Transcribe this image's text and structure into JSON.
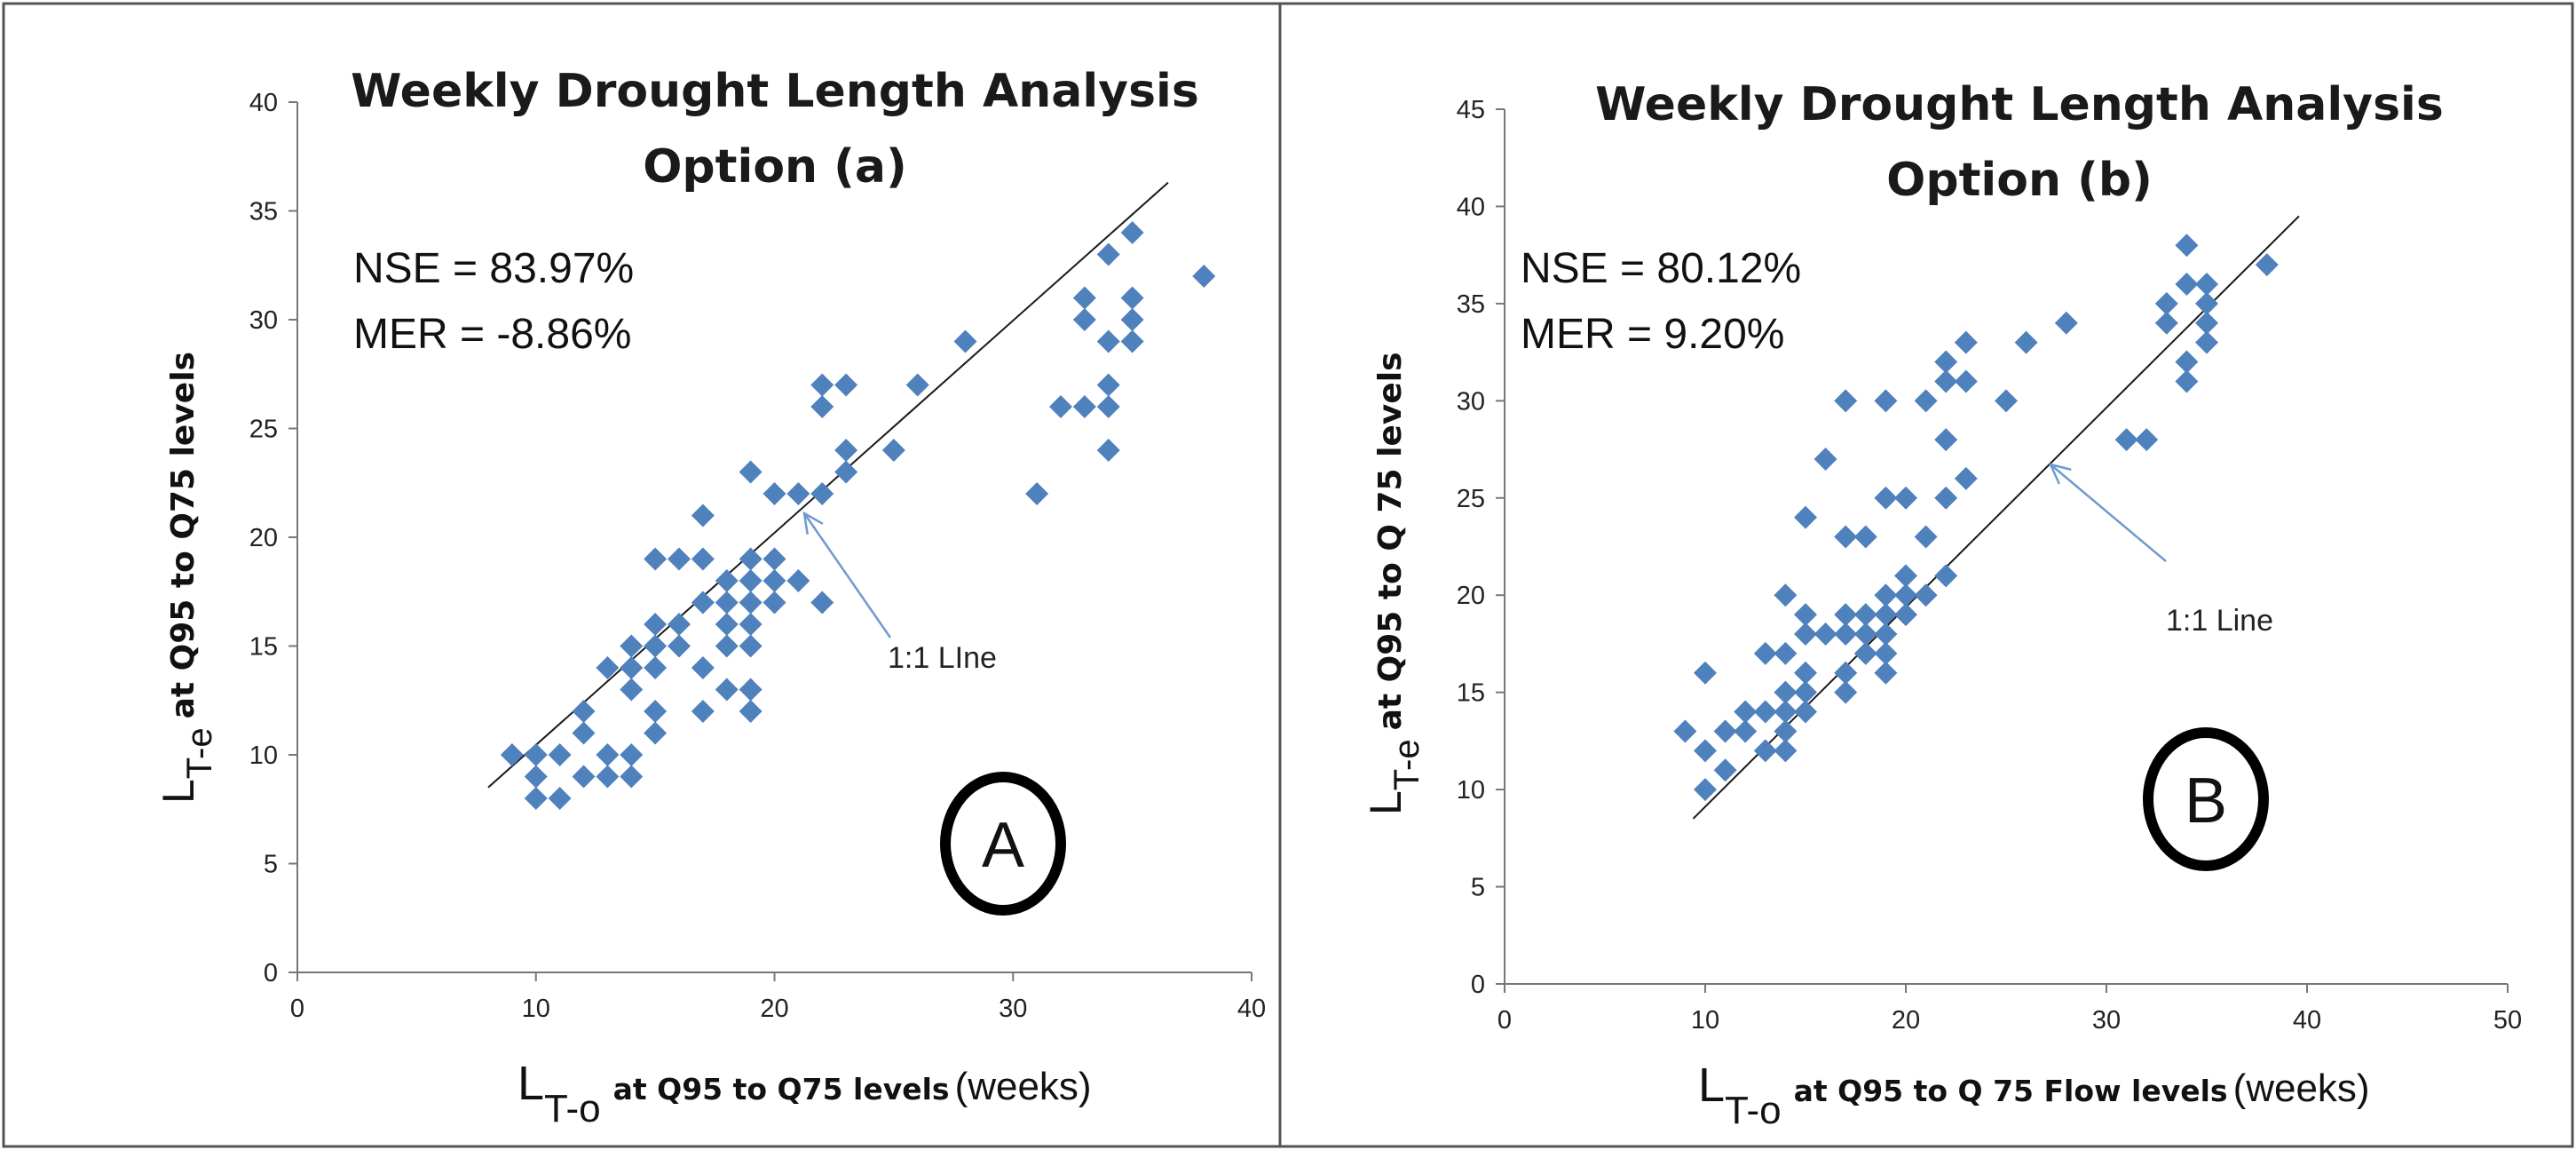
{
  "chart_data": [
    {
      "type": "scatter",
      "panel": "left",
      "title_line1": "Weekly Drought Length Analysis",
      "title_line2": "Option (a)",
      "stats": [
        "NSE = 83.97%",
        "MER = -8.86%"
      ],
      "xlabel_sym": "L",
      "xlabel_sub": "T-o",
      "xlabel_bold": "at Q95 to Q75 levels",
      "xlabel_unit": "(weeks)",
      "ylabel_sym": "L",
      "ylabel_sub": "T-e",
      "ylabel_bold": "at Q95 to Q75 levels",
      "xlim": [
        0,
        40
      ],
      "ylim": [
        0,
        40
      ],
      "xticks": [
        0,
        10,
        20,
        30,
        40
      ],
      "yticks": [
        0,
        5,
        10,
        15,
        20,
        25,
        30,
        35,
        40
      ],
      "annotation": "1:1 LIne",
      "badge": "A",
      "marker_color": "#4f81bd",
      "points": [
        [
          9,
          10
        ],
        [
          10,
          9
        ],
        [
          10,
          10
        ],
        [
          10,
          8
        ],
        [
          11,
          8
        ],
        [
          11,
          10
        ],
        [
          12,
          9
        ],
        [
          12,
          11
        ],
        [
          12,
          12
        ],
        [
          13,
          10
        ],
        [
          13,
          9
        ],
        [
          13,
          14
        ],
        [
          14,
          14
        ],
        [
          14,
          9
        ],
        [
          14,
          10
        ],
        [
          14,
          13
        ],
        [
          14,
          15
        ],
        [
          15,
          19
        ],
        [
          15,
          15
        ],
        [
          15,
          14
        ],
        [
          15,
          16
        ],
        [
          15,
          12
        ],
        [
          15,
          11
        ],
        [
          16,
          19
        ],
        [
          16,
          16
        ],
        [
          16,
          15
        ],
        [
          17,
          19
        ],
        [
          17,
          21
        ],
        [
          17,
          17
        ],
        [
          17,
          14
        ],
        [
          17,
          12
        ],
        [
          18,
          18
        ],
        [
          18,
          17
        ],
        [
          18,
          16
        ],
        [
          18,
          15
        ],
        [
          18,
          13
        ],
        [
          19,
          19
        ],
        [
          19,
          23
        ],
        [
          19,
          18
        ],
        [
          19,
          17
        ],
        [
          19,
          16
        ],
        [
          19,
          15
        ],
        [
          19,
          13
        ],
        [
          19,
          12
        ],
        [
          20,
          22
        ],
        [
          20,
          19
        ],
        [
          20,
          18
        ],
        [
          20,
          17
        ],
        [
          21,
          22
        ],
        [
          21,
          18
        ],
        [
          22,
          27
        ],
        [
          22,
          26
        ],
        [
          22,
          22
        ],
        [
          22,
          17
        ],
        [
          23,
          27
        ],
        [
          23,
          24
        ],
        [
          23,
          23
        ],
        [
          25,
          24
        ],
        [
          26,
          27
        ],
        [
          28,
          29
        ],
        [
          31,
          22
        ],
        [
          32,
          26
        ],
        [
          33,
          31
        ],
        [
          33,
          30
        ],
        [
          33,
          26
        ],
        [
          34,
          33
        ],
        [
          34,
          29
        ],
        [
          34,
          27
        ],
        [
          34,
          26
        ],
        [
          34,
          24
        ],
        [
          35,
          34
        ],
        [
          35,
          31
        ],
        [
          35,
          30
        ],
        [
          35,
          29
        ],
        [
          38,
          32
        ]
      ],
      "line": [
        [
          8,
          8.5
        ],
        [
          36.5,
          36.3
        ]
      ]
    },
    {
      "type": "scatter",
      "panel": "right",
      "title_line1": "Weekly Drought Length Analysis",
      "title_line2": "Option (b)",
      "stats": [
        "NSE = 80.12%",
        "MER =  9.20%"
      ],
      "xlabel_sym": "L",
      "xlabel_sub": "T-o",
      "xlabel_bold": "at Q95 to Q 75 Flow levels",
      "xlabel_unit": "(weeks)",
      "ylabel_sym": "L",
      "ylabel_sub": "T-e",
      "ylabel_bold": "at Q95 to Q 75 levels",
      "xlim": [
        0,
        50
      ],
      "ylim": [
        0,
        45
      ],
      "xticks": [
        0,
        10,
        20,
        30,
        40,
        50
      ],
      "yticks": [
        0,
        5,
        10,
        15,
        20,
        25,
        30,
        35,
        40,
        45
      ],
      "annotation": "1:1 Line",
      "badge": "B",
      "marker_color": "#4f81bd",
      "points": [
        [
          9,
          13
        ],
        [
          10,
          16
        ],
        [
          10,
          12
        ],
        [
          10,
          10
        ],
        [
          11,
          13
        ],
        [
          11,
          11
        ],
        [
          12,
          14
        ],
        [
          12,
          13
        ],
        [
          13,
          17
        ],
        [
          13,
          14
        ],
        [
          13,
          12
        ],
        [
          14,
          20
        ],
        [
          14,
          17
        ],
        [
          14,
          15
        ],
        [
          14,
          14
        ],
        [
          14,
          13
        ],
        [
          14,
          12
        ],
        [
          15,
          24
        ],
        [
          15,
          19
        ],
        [
          15,
          18
        ],
        [
          15,
          16
        ],
        [
          15,
          15
        ],
        [
          15,
          14
        ],
        [
          16,
          27
        ],
        [
          16,
          18
        ],
        [
          17,
          30
        ],
        [
          17,
          23
        ],
        [
          17,
          19
        ],
        [
          17,
          18
        ],
        [
          17,
          16
        ],
        [
          17,
          15
        ],
        [
          18,
          23
        ],
        [
          18,
          19
        ],
        [
          18,
          18
        ],
        [
          18,
          17
        ],
        [
          19,
          30
        ],
        [
          19,
          25
        ],
        [
          19,
          20
        ],
        [
          19,
          19
        ],
        [
          19,
          18
        ],
        [
          19,
          17
        ],
        [
          19,
          16
        ],
        [
          20,
          25
        ],
        [
          20,
          21
        ],
        [
          20,
          20
        ],
        [
          20,
          19
        ],
        [
          21,
          30
        ],
        [
          21,
          23
        ],
        [
          21,
          20
        ],
        [
          22,
          32
        ],
        [
          22,
          31
        ],
        [
          22,
          28
        ],
        [
          22,
          25
        ],
        [
          22,
          21
        ],
        [
          23,
          33
        ],
        [
          23,
          31
        ],
        [
          23,
          26
        ],
        [
          25,
          30
        ],
        [
          26,
          33
        ],
        [
          28,
          34
        ],
        [
          31,
          28
        ],
        [
          32,
          28
        ],
        [
          33,
          35
        ],
        [
          33,
          34
        ],
        [
          34,
          38
        ],
        [
          34,
          36
        ],
        [
          34,
          32
        ],
        [
          34,
          31
        ],
        [
          35,
          36
        ],
        [
          35,
          35
        ],
        [
          35,
          34
        ],
        [
          35,
          33
        ],
        [
          38,
          37
        ]
      ],
      "line": [
        [
          9.4,
          8.5
        ],
        [
          39.6,
          39.5
        ]
      ]
    }
  ]
}
